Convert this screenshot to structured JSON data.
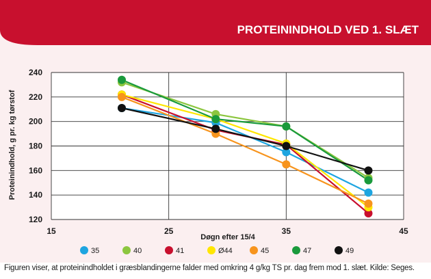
{
  "caption": "Figuren viser, at proteinindholdet i græsblandingerne falder med omkring 4 g/kg TS pr. dag frem mod 1. slæt. Kilde: Seges.",
  "colors": {
    "banner": "#c8102e",
    "panel": "#fbeff0",
    "grid": "#333333"
  },
  "chart_data": {
    "type": "line",
    "title": "PROTEININDHOLD VED 1. SLÆT",
    "xlabel": "Døgn efter 15/4",
    "ylabel": "Proteinindhold, g pr. kg tørstof",
    "xlim": [
      15,
      45
    ],
    "ylim": [
      120,
      240
    ],
    "xticks": [
      15,
      25,
      35,
      45
    ],
    "yticks": [
      120,
      140,
      160,
      180,
      200,
      220,
      240
    ],
    "grid": true,
    "legend_position": "bottom",
    "x": [
      21,
      29,
      35,
      42
    ],
    "series": [
      {
        "name": "35",
        "color": "#1ea5e0",
        "values": [
          211,
          199,
          175,
          142
        ]
      },
      {
        "name": "40",
        "color": "#8cc63f",
        "values": [
          232,
          206,
          196,
          154
        ]
      },
      {
        "name": "41",
        "color": "#c8102e",
        "values": [
          222,
          193,
          181,
          125
        ]
      },
      {
        "name": "Ø44",
        "color": "#ffe600",
        "values": [
          222,
          202,
          182,
          130
        ]
      },
      {
        "name": "45",
        "color": "#f7941d",
        "values": [
          220,
          190,
          165,
          133
        ]
      },
      {
        "name": "47",
        "color": "#1a9a3c",
        "values": [
          234,
          202,
          196,
          152
        ]
      },
      {
        "name": "49",
        "color": "#111111",
        "values": [
          211,
          194,
          180,
          160
        ]
      }
    ]
  }
}
